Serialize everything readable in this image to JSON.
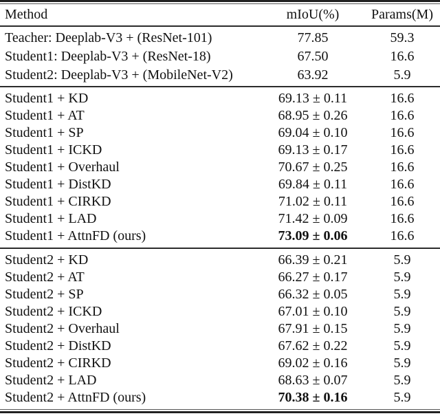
{
  "table": {
    "columns": [
      "Method",
      "mIoU(%)",
      "Params(M)"
    ],
    "sections": [
      {
        "name": "baselines",
        "rows": [
          {
            "method": "Teacher: Deeplab-V3 + (ResNet-101)",
            "miou": "77.85",
            "params": "59.3",
            "bold": false
          },
          {
            "method": "Student1: Deeplab-V3 + (ResNet-18)",
            "miou": "67.50",
            "params": "16.6",
            "bold": false
          },
          {
            "method": "Student2: Deeplab-V3 + (MobileNet-V2)",
            "miou": "63.92",
            "params": "5.9",
            "bold": false
          }
        ]
      },
      {
        "name": "student1-distillation",
        "rows": [
          {
            "method": "Student1 + KD",
            "miou": "69.13 ± 0.11",
            "params": "16.6",
            "bold": false
          },
          {
            "method": "Student1 + AT",
            "miou": "68.95 ± 0.26",
            "params": "16.6",
            "bold": false
          },
          {
            "method": "Student1 + SP",
            "miou": "69.04 ± 0.10",
            "params": "16.6",
            "bold": false
          },
          {
            "method": "Student1 + ICKD",
            "miou": "69.13 ± 0.17",
            "params": "16.6",
            "bold": false
          },
          {
            "method": "Student1 + Overhaul",
            "miou": "70.67 ± 0.25",
            "params": "16.6",
            "bold": false
          },
          {
            "method": "Student1 + DistKD",
            "miou": "69.84 ± 0.11",
            "params": "16.6",
            "bold": false
          },
          {
            "method": "Student1 + CIRKD",
            "miou": "71.02 ± 0.11",
            "params": "16.6",
            "bold": false
          },
          {
            "method": "Student1 + LAD",
            "miou": "71.42 ± 0.09",
            "params": "16.6",
            "bold": false
          },
          {
            "method": "Student1 + AttnFD (ours)",
            "miou": "73.09 ± 0.06",
            "params": "16.6",
            "bold": true
          }
        ]
      },
      {
        "name": "student2-distillation",
        "rows": [
          {
            "method": "Student2 + KD",
            "miou": "66.39 ± 0.21",
            "params": "5.9",
            "bold": false
          },
          {
            "method": "Student2 + AT",
            "miou": "66.27 ± 0.17",
            "params": "5.9",
            "bold": false
          },
          {
            "method": "Student2 + SP",
            "miou": "66.32 ± 0.05",
            "params": "5.9",
            "bold": false
          },
          {
            "method": "Student2 + ICKD",
            "miou": "67.01 ± 0.10",
            "params": "5.9",
            "bold": false
          },
          {
            "method": "Student2 + Overhaul",
            "miou": "67.91 ± 0.15",
            "params": "5.9",
            "bold": false
          },
          {
            "method": "Student2 + DistKD",
            "miou": "67.62 ± 0.22",
            "params": "5.9",
            "bold": false
          },
          {
            "method": "Student2 + CIRKD",
            "miou": "69.02 ± 0.16",
            "params": "5.9",
            "bold": false
          },
          {
            "method": "Student2 + LAD",
            "miou": "68.63 ± 0.07",
            "params": "5.9",
            "bold": false
          },
          {
            "method": "Student2 + AttnFD (ours)",
            "miou": "70.38 ± 0.16",
            "params": "5.9",
            "bold": true
          }
        ]
      }
    ]
  }
}
